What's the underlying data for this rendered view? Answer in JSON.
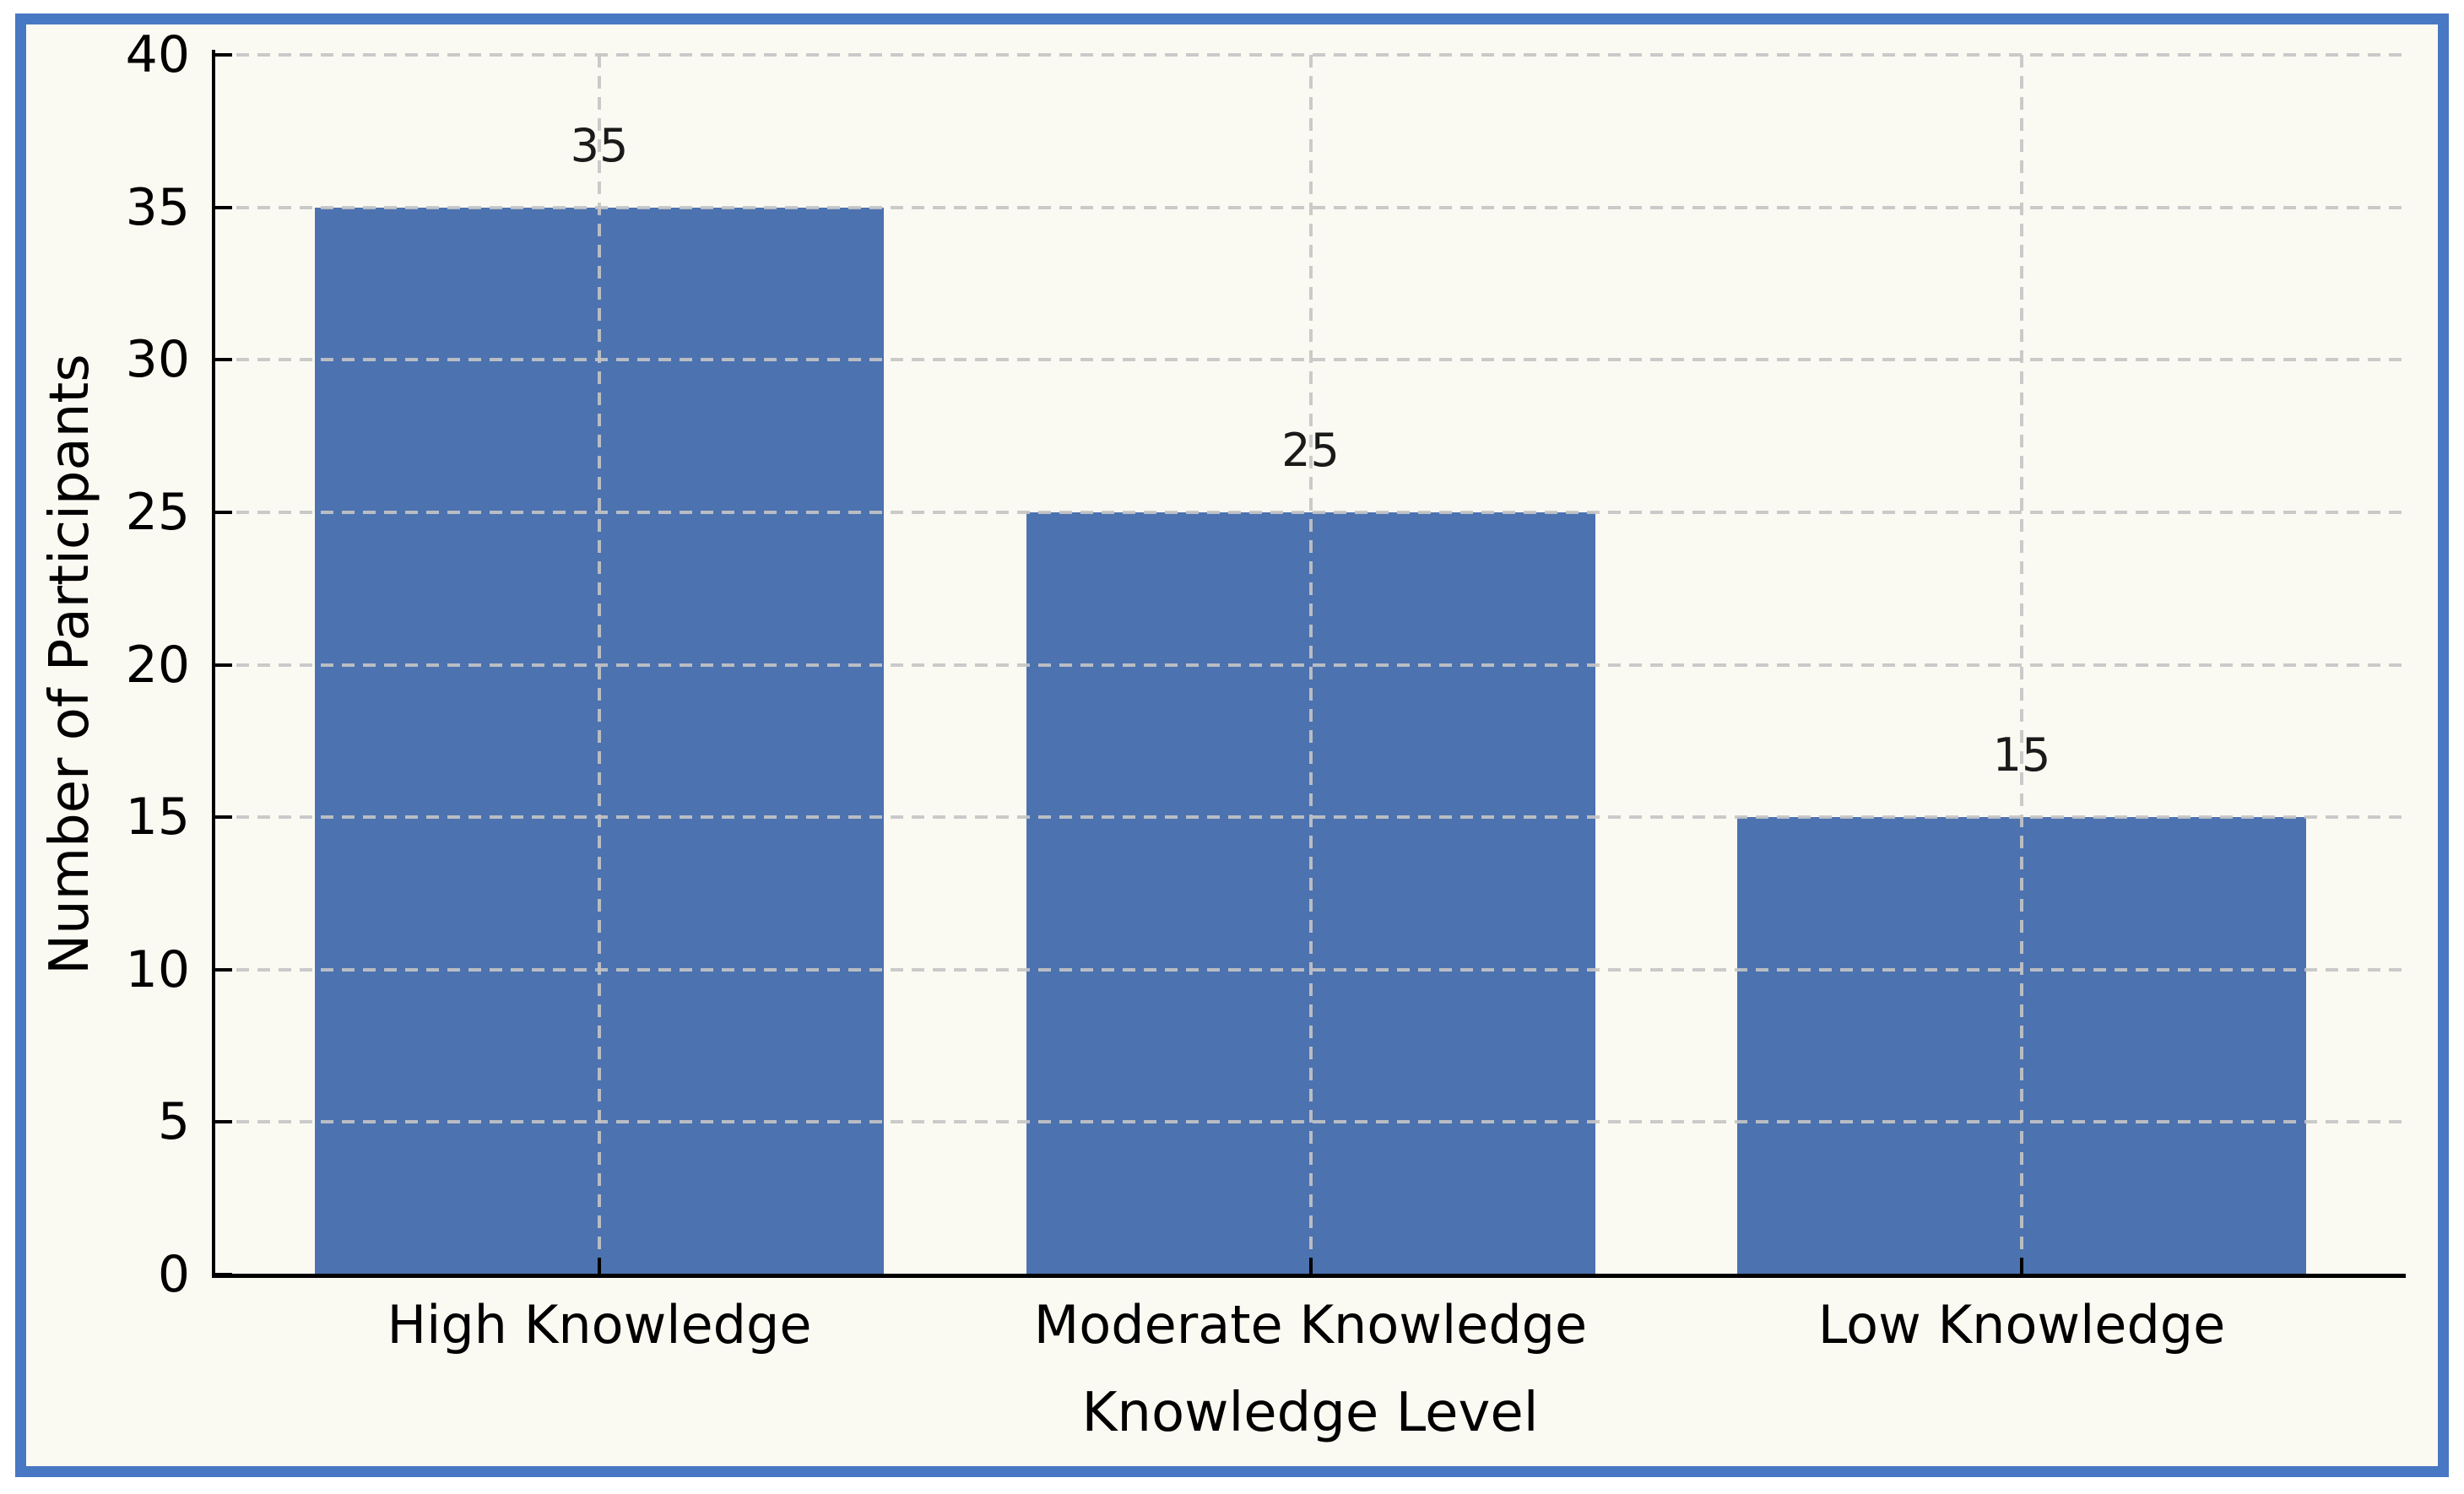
{
  "figure": {
    "border_color": "#4878c4",
    "background_color": "#fbfaf2",
    "outer_background": "#ffffff"
  },
  "chart_data": {
    "type": "bar",
    "title": "",
    "categories": [
      "High Knowledge",
      "Moderate Knowledge",
      "Low Knowledge"
    ],
    "values": [
      35,
      25,
      15
    ],
    "bar_value_labels": [
      "35",
      "25",
      "15"
    ],
    "xlabel": "Knowledge Level",
    "ylabel": "Number of Participants",
    "ylim": [
      0,
      40
    ],
    "yticks": [
      0,
      5,
      10,
      15,
      20,
      25,
      30,
      35,
      40
    ],
    "bar_color": "#4c72b0",
    "grid": true,
    "grid_line_style": "dashed",
    "grid_color": "#c5c5c5",
    "grid_over_bars": true,
    "legend_position": "none",
    "text_color": "#000000"
  }
}
